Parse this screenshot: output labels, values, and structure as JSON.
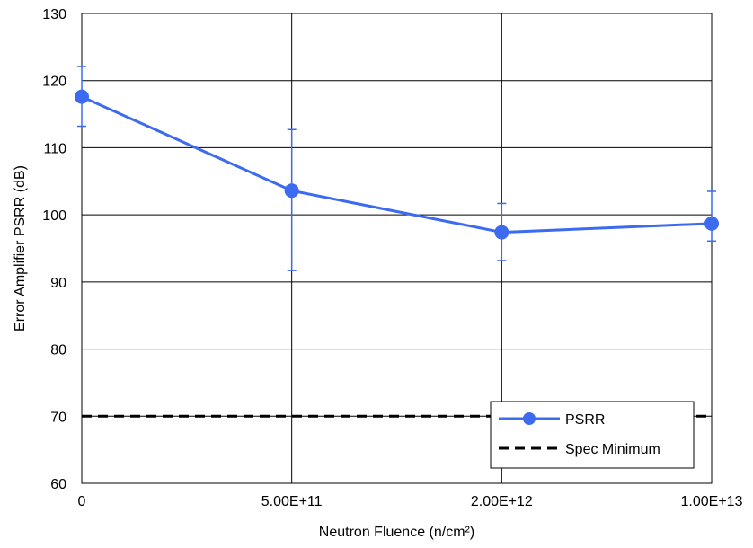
{
  "chart_data": {
    "type": "line",
    "categories": [
      "0",
      "5.00E+11",
      "2.00E+12",
      "1.00E+13"
    ],
    "xlabel": "Neutron Fluence (n/cm²)",
    "ylabel": "Error Amplifier PSRR (dB)",
    "ylim": [
      60,
      130
    ],
    "yticks": [
      60,
      70,
      80,
      90,
      100,
      110,
      120,
      130
    ],
    "grid": true,
    "legend_position": "bottom-right",
    "series": [
      {
        "name": "PSRR",
        "color": "#3D6BF0",
        "values": [
          117.6,
          103.6,
          97.4,
          98.7
        ],
        "error_high": [
          122.1,
          112.7,
          101.7,
          103.5
        ],
        "error_low": [
          113.2,
          91.7,
          93.2,
          96.1
        ]
      },
      {
        "name": "Spec Minimum",
        "color": "#000000",
        "style": "dashed",
        "values": [
          70,
          70,
          70,
          70
        ]
      }
    ]
  }
}
